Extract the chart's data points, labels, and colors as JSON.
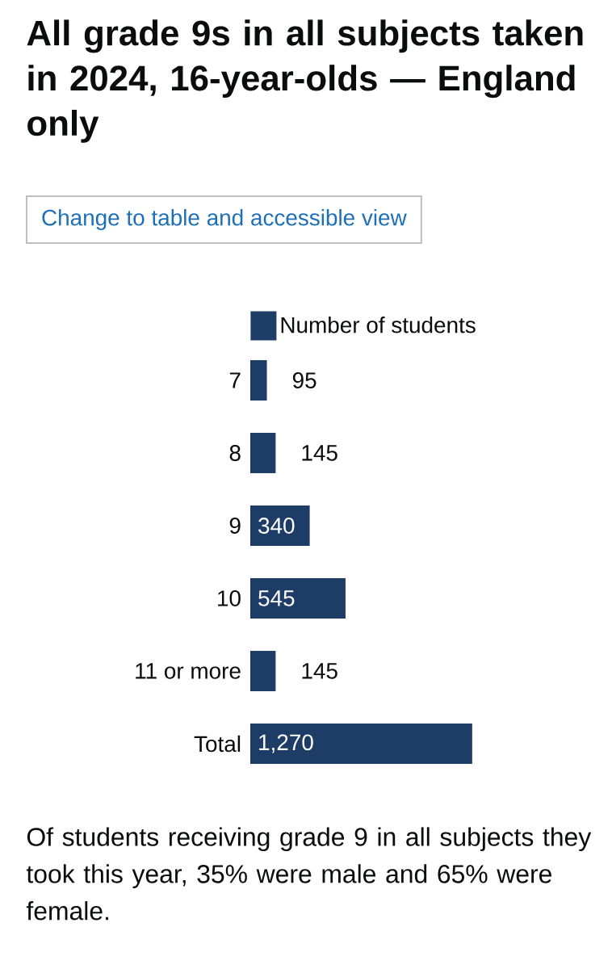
{
  "chart_data": {
    "type": "bar",
    "orientation": "horizontal",
    "title": "All grade 9s in all subjects taken in 2024, 16-year-olds — England only",
    "categories": [
      "7",
      "8",
      "9",
      "10",
      "11 or more",
      "Total"
    ],
    "series": [
      {
        "name": "Number of students",
        "color": "#1d3d66",
        "values": [
          95,
          145,
          340,
          545,
          145,
          1270
        ],
        "value_labels": [
          "95",
          "145",
          "340",
          "545",
          "145",
          "1,270"
        ]
      }
    ],
    "legend": "top",
    "annotations": [
      "Change to table and accessible view",
      "Of students receiving grade 9 in all subjects they took this year, 35% were male and 65% were female."
    ]
  }
}
